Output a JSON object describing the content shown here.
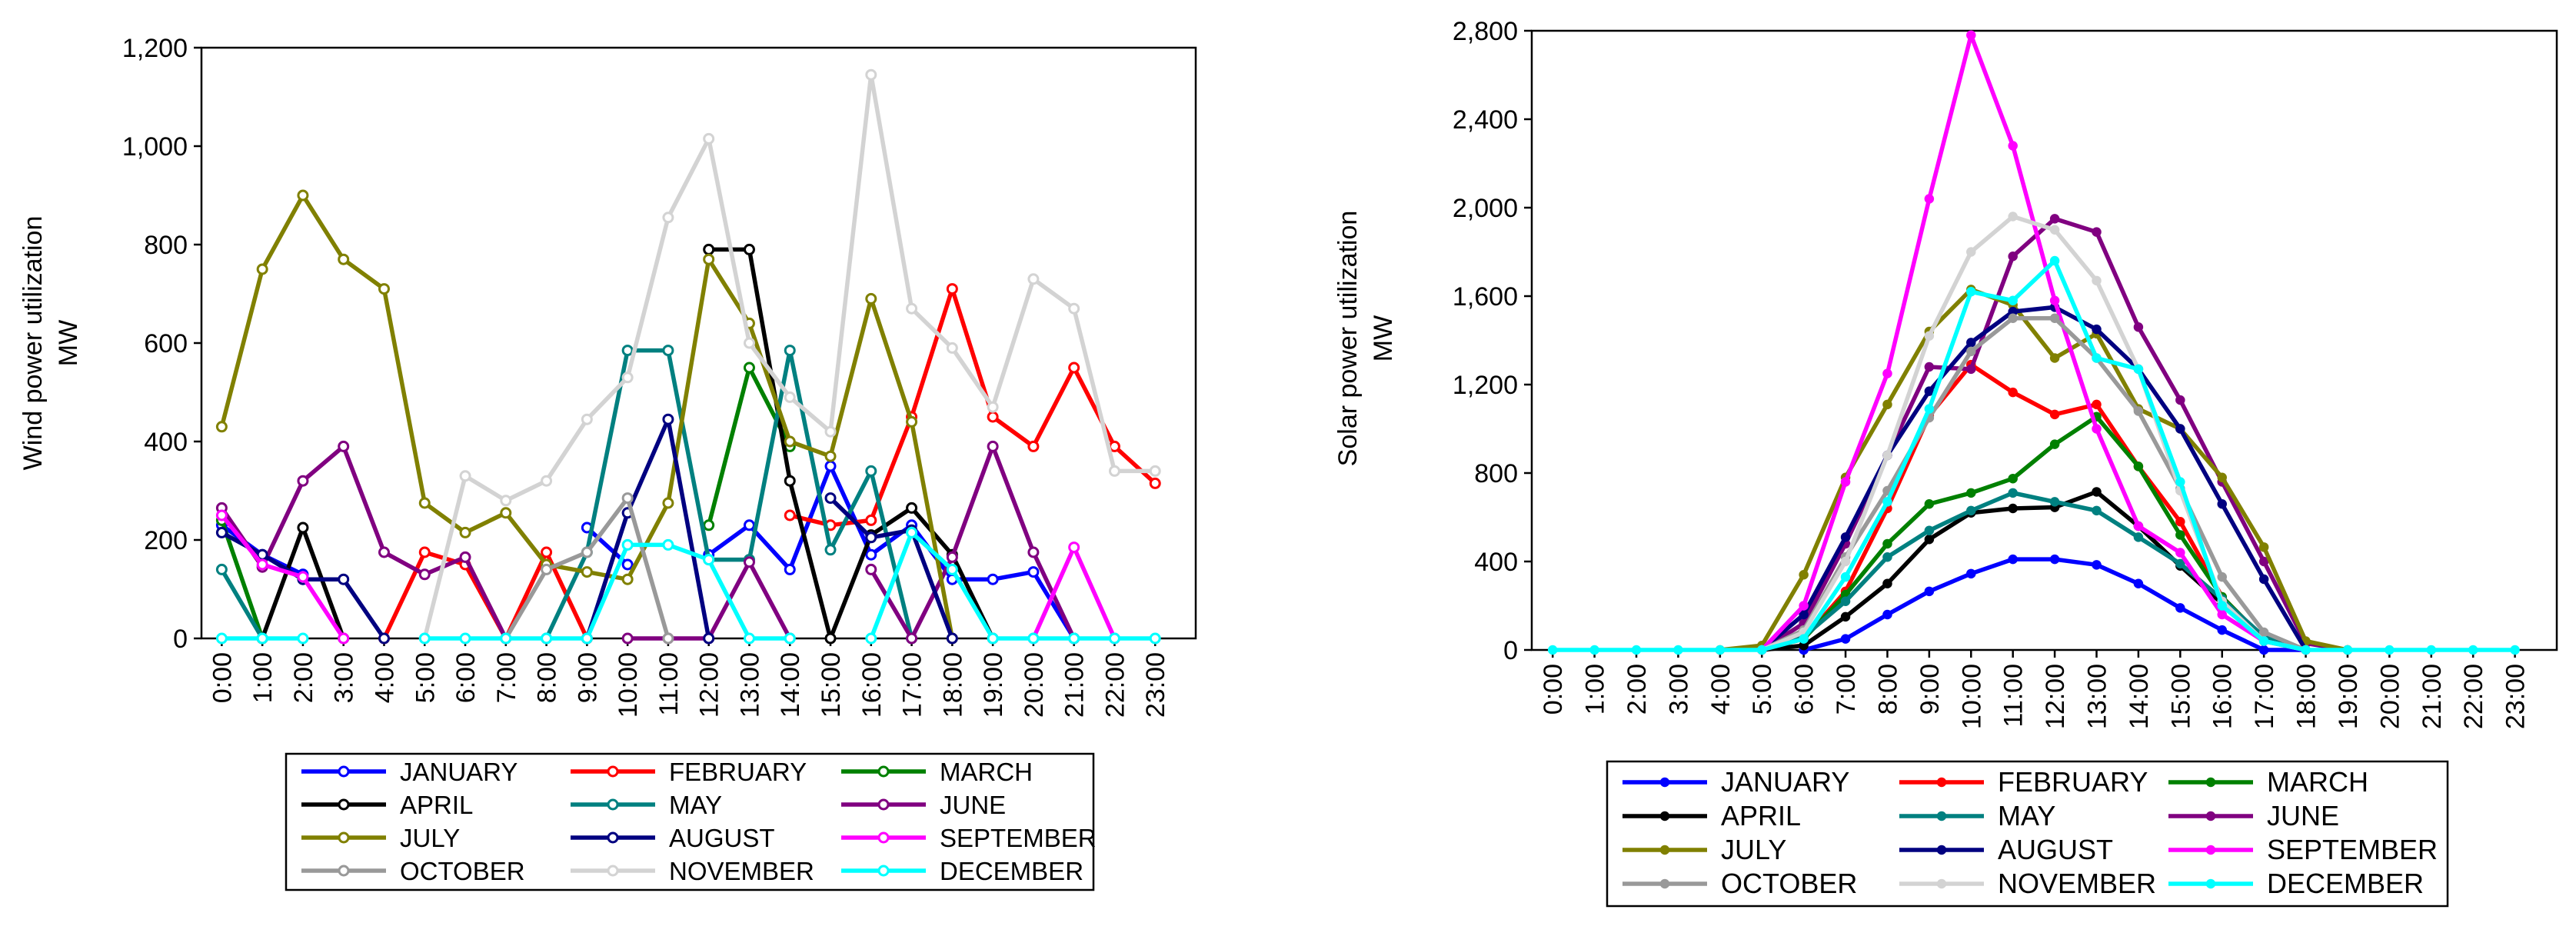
{
  "chart_data": [
    {
      "type": "line",
      "title": "",
      "xlabel": "",
      "ylabel": "Wind power utilization",
      "yunit": "MW",
      "ylim": [
        0,
        1200
      ],
      "yticks": [
        0,
        200,
        400,
        600,
        800,
        1000,
        1200
      ],
      "ytick_labels": [
        "0",
        "200",
        "400",
        "600",
        "800",
        "1,000",
        "1,200"
      ],
      "categories": [
        "0:00",
        "1:00",
        "2:00",
        "3:00",
        "4:00",
        "5:00",
        "6:00",
        "7:00",
        "8:00",
        "9:00",
        "10:00",
        "11:00",
        "12:00",
        "13:00",
        "14:00",
        "15:00",
        "16:00",
        "17:00",
        "18:00",
        "19:00",
        "20:00",
        "21:00",
        "22:00",
        "23:00"
      ],
      "marker": "open-circle",
      "legend": "bottom",
      "series": [
        {
          "name": "JANUARY",
          "color": "#0000ff",
          "values": [
            230,
            170,
            130,
            null,
            null,
            null,
            null,
            null,
            null,
            225,
            150,
            null,
            170,
            230,
            140,
            350,
            170,
            230,
            120,
            120,
            135,
            0,
            null,
            null
          ]
        },
        {
          "name": "FEBRUARY",
          "color": "#ff0000",
          "values": [
            null,
            null,
            null,
            null,
            0,
            175,
            150,
            0,
            175,
            0,
            null,
            null,
            null,
            null,
            250,
            230,
            240,
            450,
            710,
            450,
            390,
            550,
            390,
            315
          ]
        },
        {
          "name": "MARCH",
          "color": "#008000",
          "values": [
            240,
            0,
            null,
            null,
            null,
            null,
            null,
            null,
            null,
            null,
            null,
            null,
            230,
            550,
            390,
            null,
            null,
            null,
            null,
            null,
            null,
            null,
            null,
            null
          ]
        },
        {
          "name": "APRIL",
          "color": "#000000",
          "values": [
            null,
            0,
            225,
            0,
            null,
            null,
            null,
            null,
            null,
            null,
            null,
            null,
            790,
            790,
            320,
            0,
            210,
            265,
            170,
            0,
            null,
            null,
            null,
            null
          ]
        },
        {
          "name": "MAY",
          "color": "#008080",
          "values": [
            140,
            0,
            null,
            null,
            null,
            null,
            null,
            null,
            0,
            175,
            585,
            585,
            160,
            160,
            585,
            180,
            340,
            0,
            null,
            null,
            null,
            null,
            null,
            null
          ]
        },
        {
          "name": "JUNE",
          "color": "#800080",
          "values": [
            265,
            145,
            320,
            390,
            175,
            130,
            165,
            0,
            null,
            null,
            0,
            0,
            0,
            155,
            0,
            null,
            140,
            0,
            165,
            390,
            175,
            0,
            null,
            null
          ]
        },
        {
          "name": "JULY",
          "color": "#808000",
          "values": [
            430,
            750,
            900,
            770,
            710,
            275,
            215,
            255,
            150,
            135,
            120,
            275,
            770,
            640,
            400,
            370,
            690,
            440,
            0,
            null,
            null,
            null,
            null,
            null
          ]
        },
        {
          "name": "AUGUST",
          "color": "#000080",
          "values": [
            215,
            170,
            120,
            120,
            0,
            null,
            null,
            null,
            null,
            0,
            255,
            445,
            0,
            null,
            null,
            285,
            205,
            220,
            0,
            null,
            null,
            null,
            null,
            null
          ]
        },
        {
          "name": "SEPTEMBER",
          "color": "#ff00ff",
          "values": [
            250,
            150,
            125,
            0,
            null,
            null,
            null,
            null,
            null,
            null,
            null,
            null,
            null,
            null,
            null,
            null,
            null,
            null,
            null,
            null,
            0,
            185,
            0,
            null
          ]
        },
        {
          "name": "OCTOBER",
          "color": "#999999",
          "values": [
            null,
            null,
            null,
            null,
            null,
            null,
            null,
            0,
            140,
            175,
            285,
            0,
            null,
            null,
            null,
            null,
            null,
            null,
            null,
            null,
            null,
            null,
            null,
            null
          ]
        },
        {
          "name": "NOVEMBER",
          "color": "#d3d3d3",
          "values": [
            null,
            null,
            null,
            null,
            null,
            0,
            330,
            280,
            320,
            445,
            530,
            855,
            1015,
            600,
            490,
            420,
            1145,
            670,
            590,
            470,
            730,
            670,
            340,
            340
          ]
        },
        {
          "name": "DECEMBER",
          "color": "#00ffff",
          "values": [
            0,
            0,
            0,
            null,
            null,
            0,
            0,
            0,
            0,
            0,
            190,
            190,
            160,
            0,
            0,
            null,
            0,
            215,
            140,
            0,
            0,
            0,
            0,
            0
          ]
        }
      ]
    },
    {
      "type": "line",
      "title": "",
      "xlabel": "",
      "ylabel": "Solar power utilization",
      "yunit": "MW",
      "ylim": [
        0,
        2800
      ],
      "yticks": [
        0,
        400,
        800,
        1200,
        1600,
        2000,
        2400,
        2800
      ],
      "ytick_labels": [
        "0",
        "400",
        "800",
        "1,200",
        "1,600",
        "2,000",
        "2,400",
        "2,800"
      ],
      "categories": [
        "0:00",
        "1:00",
        "2:00",
        "3:00",
        "4:00",
        "5:00",
        "6:00",
        "7:00",
        "8:00",
        "9:00",
        "10:00",
        "11:00",
        "12:00",
        "13:00",
        "14:00",
        "15:00",
        "16:00",
        "17:00",
        "18:00",
        "19:00",
        "20:00",
        "21:00",
        "22:00",
        "23:00"
      ],
      "marker": "filled-circle",
      "legend": "bottom",
      "series": [
        {
          "name": "JANUARY",
          "color": "#0000ff",
          "values": [
            null,
            null,
            null,
            null,
            null,
            null,
            0,
            50,
            160,
            265,
            345,
            410,
            410,
            385,
            300,
            190,
            90,
            0,
            0,
            null,
            null,
            null,
            null,
            null
          ]
        },
        {
          "name": "FEBRUARY",
          "color": "#ff0000",
          "values": [
            null,
            null,
            null,
            null,
            null,
            0,
            50,
            265,
            640,
            1060,
            1290,
            1165,
            1065,
            1110,
            830,
            580,
            240,
            50,
            0,
            null,
            null,
            null,
            null,
            null
          ]
        },
        {
          "name": "MARCH",
          "color": "#008000",
          "values": [
            null,
            null,
            null,
            null,
            null,
            0,
            50,
            250,
            480,
            660,
            710,
            775,
            930,
            1055,
            830,
            520,
            240,
            50,
            0,
            null,
            null,
            null,
            null,
            null
          ]
        },
        {
          "name": "APRIL",
          "color": "#000000",
          "values": [
            null,
            null,
            null,
            null,
            null,
            0,
            20,
            150,
            300,
            500,
            620,
            640,
            645,
            715,
            560,
            380,
            210,
            40,
            0,
            null,
            null,
            null,
            null,
            null
          ]
        },
        {
          "name": "MAY",
          "color": "#008080",
          "values": [
            null,
            null,
            null,
            null,
            null,
            0,
            60,
            220,
            420,
            540,
            630,
            710,
            670,
            630,
            510,
            390,
            230,
            60,
            0,
            null,
            null,
            null,
            null,
            null
          ]
        },
        {
          "name": "JUNE",
          "color": "#800080",
          "values": [
            null,
            null,
            null,
            null,
            null,
            0,
            120,
            480,
            880,
            1280,
            1270,
            1780,
            1950,
            1890,
            1460,
            1130,
            760,
            400,
            30,
            0,
            null,
            null,
            null,
            null
          ]
        },
        {
          "name": "JULY",
          "color": "#808000",
          "values": [
            null,
            null,
            null,
            null,
            0,
            20,
            340,
            780,
            1110,
            1440,
            1630,
            1560,
            1320,
            1430,
            1090,
            1000,
            780,
            465,
            40,
            0,
            null,
            null,
            null,
            null
          ]
        },
        {
          "name": "AUGUST",
          "color": "#000080",
          "values": [
            null,
            null,
            null,
            null,
            null,
            0,
            160,
            510,
            880,
            1170,
            1390,
            1530,
            1550,
            1450,
            1270,
            1000,
            660,
            320,
            0,
            null,
            null,
            null,
            null,
            null
          ]
        },
        {
          "name": "SEPTEMBER",
          "color": "#ff00ff",
          "values": [
            null,
            null,
            null,
            null,
            null,
            0,
            200,
            760,
            1250,
            2040,
            2780,
            2280,
            1580,
            1000,
            560,
            440,
            160,
            40,
            0,
            null,
            null,
            null,
            null,
            null
          ]
        },
        {
          "name": "OCTOBER",
          "color": "#999999",
          "values": [
            null,
            null,
            null,
            null,
            null,
            0,
            90,
            420,
            720,
            1050,
            1350,
            1500,
            1500,
            1320,
            1080,
            730,
            330,
            80,
            0,
            null,
            null,
            null,
            null,
            null
          ]
        },
        {
          "name": "NOVEMBER",
          "color": "#d3d3d3",
          "values": [
            null,
            null,
            null,
            null,
            null,
            0,
            80,
            400,
            880,
            1420,
            1800,
            1960,
            1900,
            1670,
            1270,
            720,
            220,
            40,
            0,
            null,
            null,
            null,
            null,
            null
          ]
        },
        {
          "name": "DECEMBER",
          "color": "#00ffff",
          "values": [
            0,
            0,
            0,
            0,
            0,
            0,
            50,
            330,
            670,
            1090,
            1620,
            1580,
            1760,
            1320,
            1270,
            760,
            200,
            40,
            0,
            0,
            0,
            0,
            0,
            0
          ]
        }
      ]
    }
  ]
}
